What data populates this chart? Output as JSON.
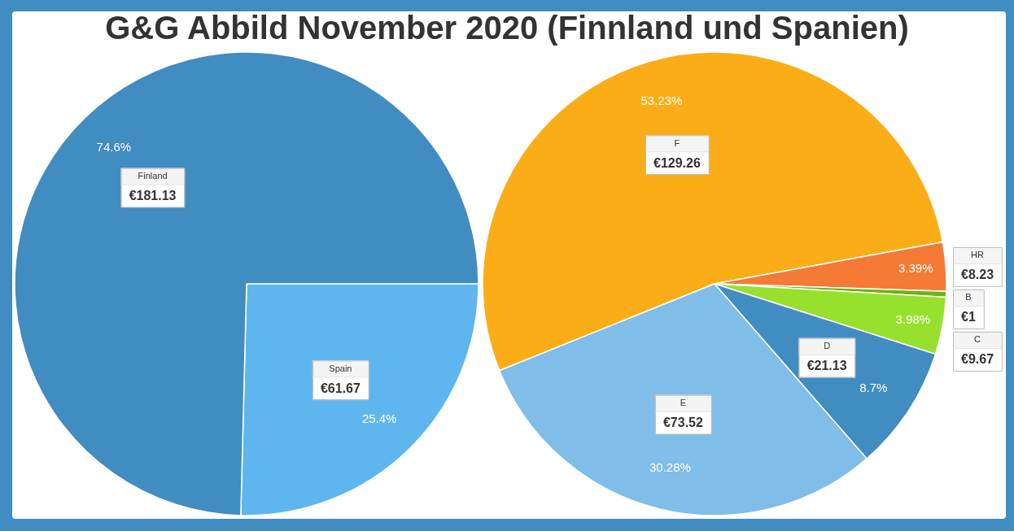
{
  "chart_data": [
    {
      "type": "pie",
      "title": "G&G Abbild November 2020 (Finnland und Spanien)",
      "categories": [
        "Spain",
        "Finland"
      ],
      "values": [
        61.67,
        181.13
      ],
      "colors": [
        "#5fb6ee",
        "#418cc0"
      ],
      "value_labels": [
        "€61.67",
        "€181.13"
      ],
      "annotations": [
        {
          "text": "25.4%",
          "x": "Spain"
        },
        {
          "text": "74.6%",
          "x": "Finland"
        }
      ]
    },
    {
      "type": "pie",
      "categories": [
        "F",
        "HR",
        "B",
        "C",
        "D",
        "E"
      ],
      "values": [
        129.26,
        8.23,
        1,
        9.67,
        21.13,
        73.52
      ],
      "colors": [
        "#fbad18",
        "#f47a36",
        "#6db312",
        "#97e02e",
        "#418cc0",
        "#80bde8"
      ],
      "value_labels": [
        "€129.26",
        "€8.23",
        "€1",
        "€9.67",
        "€21.13",
        "€73.52"
      ],
      "annotations": [
        {
          "text": "53.23%",
          "x": "F"
        },
        {
          "text": "3.39%",
          "x": "HR"
        },
        {
          "text": "3.98%",
          "x": "C"
        },
        {
          "text": "8.7%",
          "x": "D"
        },
        {
          "text": "30.28%",
          "x": "E"
        }
      ]
    }
  ]
}
